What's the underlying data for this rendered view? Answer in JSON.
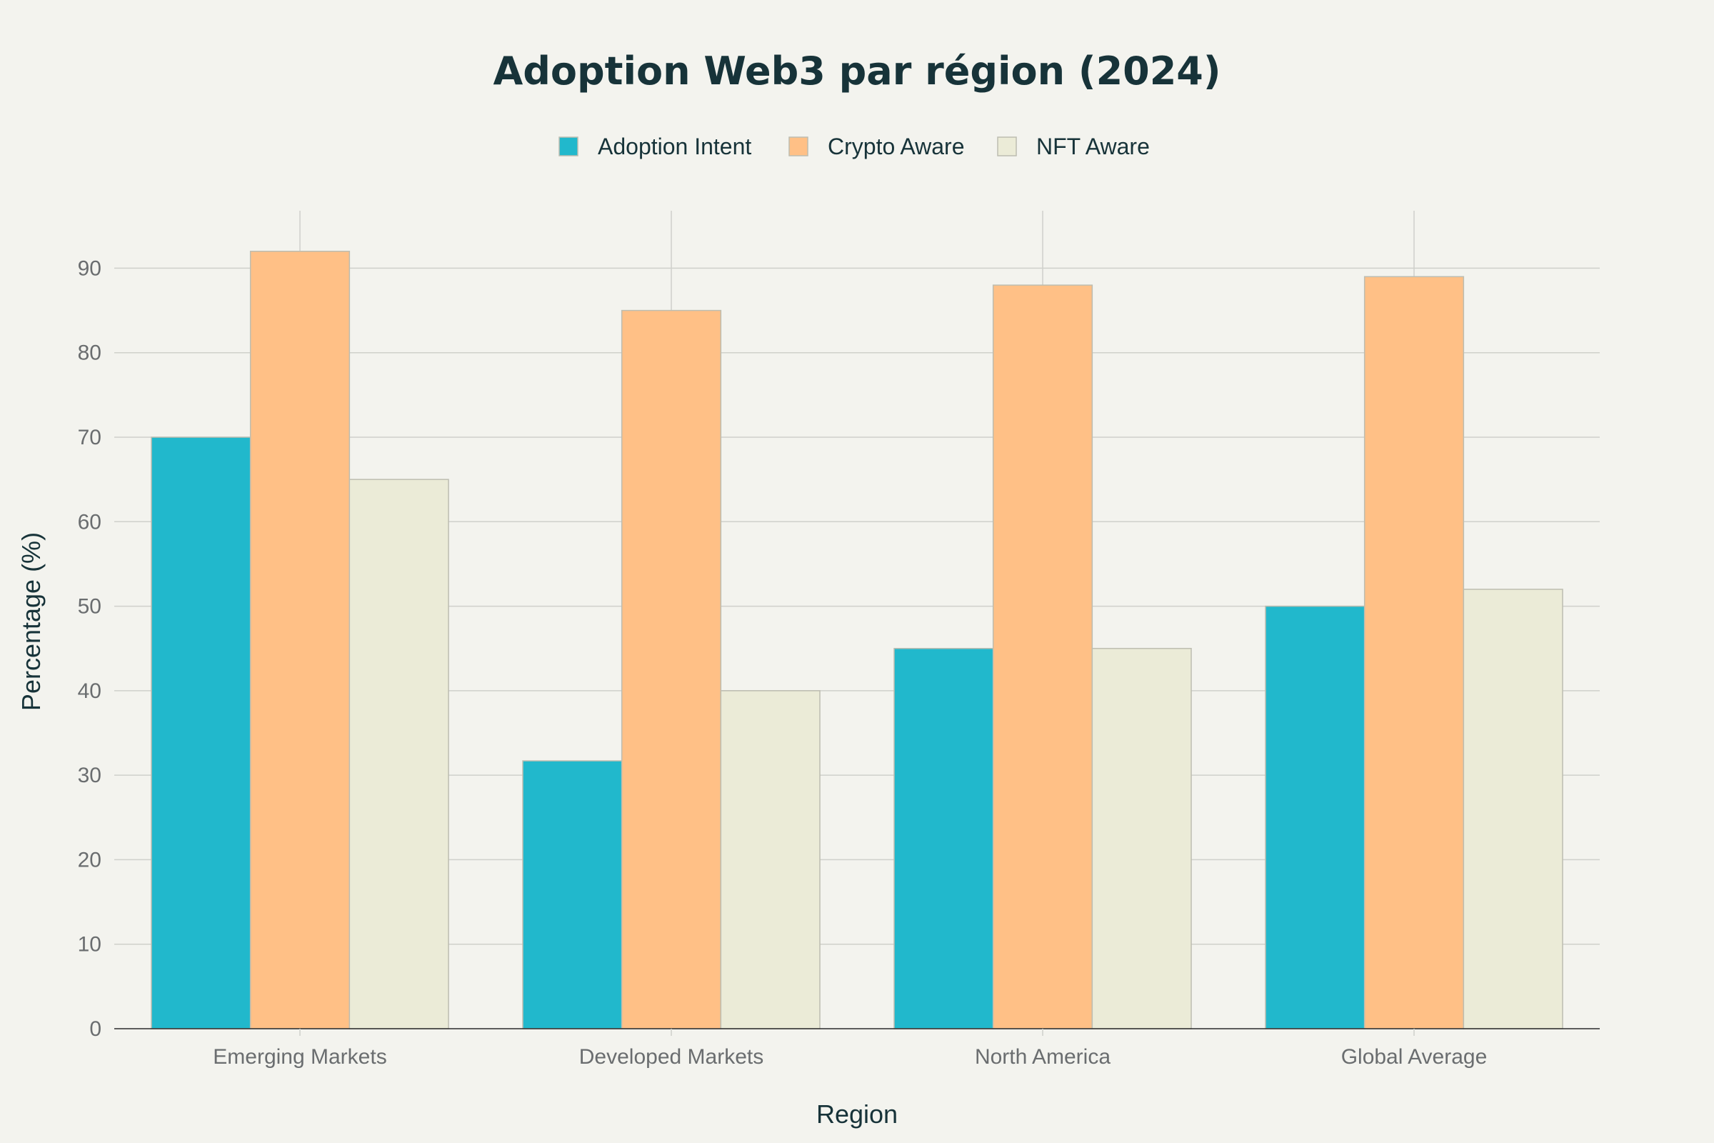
{
  "chart_data": {
    "type": "bar",
    "title": "Adoption Web3 par région (2024)",
    "xlabel": "Region",
    "ylabel": "Percentage (%)",
    "categories": [
      "Emerging Markets",
      "Developed Markets",
      "North America",
      "Global Average"
    ],
    "series": [
      {
        "name": "Adoption Intent",
        "values": [
          70,
          31.7,
          45,
          50
        ],
        "color": "#21b8cc"
      },
      {
        "name": "Crypto Aware",
        "values": [
          92,
          85,
          88,
          89
        ],
        "color": "#ffc086"
      },
      {
        "name": "NFT Aware",
        "values": [
          65,
          40,
          45,
          52
        ],
        "color": "#ebebd7"
      }
    ],
    "ylim": [
      0,
      96.8
    ],
    "yticks": [
      0,
      10,
      20,
      30,
      40,
      50,
      60,
      70,
      80,
      90
    ],
    "grid": true,
    "legend_position": "top-center"
  }
}
